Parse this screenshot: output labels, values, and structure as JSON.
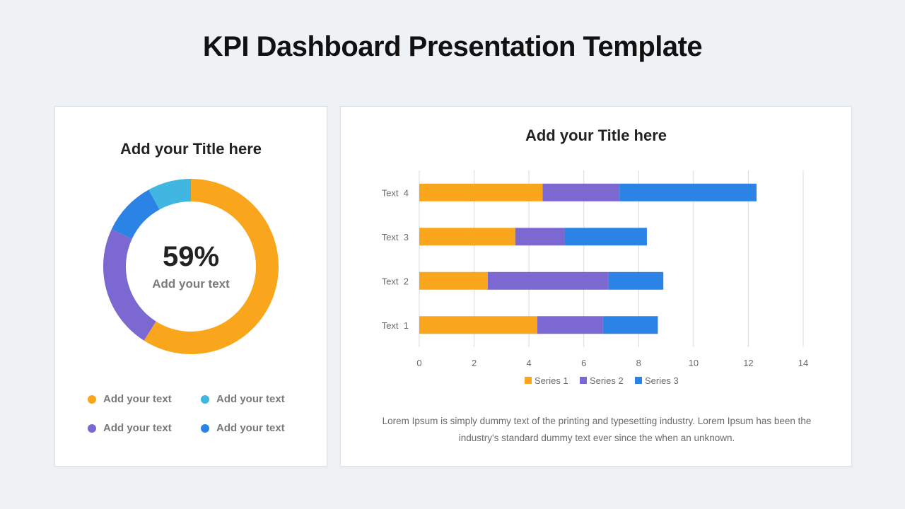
{
  "page": {
    "title": "KPI Dashboard Presentation Template"
  },
  "left_card": {
    "title": "Add your Title here",
    "center_value": "59%",
    "center_label": "Add your text",
    "legend": [
      {
        "label": "Add your text",
        "color": "#f9a61c"
      },
      {
        "label": "Add your text",
        "color": "#41b6e0"
      },
      {
        "label": "Add your text",
        "color": "#7b68d0"
      },
      {
        "label": "Add your text",
        "color": "#2b83e6"
      }
    ]
  },
  "right_card": {
    "title": "Add your Title here",
    "footnote": "Lorem Ipsum is simply dummy text of the printing and typesetting industry. Lorem Ipsum has been the industry's standard dummy text ever since the when an unknown."
  },
  "chart_data": [
    {
      "type": "pie",
      "donut": true,
      "values": [
        59,
        23,
        10,
        8
      ],
      "colors": [
        "#f9a61c",
        "#7b68d0",
        "#2b83e6",
        "#41b6e0"
      ]
    },
    {
      "type": "bar",
      "orientation": "horizontal",
      "stacked": true,
      "categories": [
        "Text  1",
        "Text  2",
        "Text  3",
        "Text  4"
      ],
      "series": [
        {
          "name": "Series 1",
          "color": "#f9a61c",
          "values": [
            4.3,
            2.5,
            3.5,
            4.5
          ]
        },
        {
          "name": "Series 2",
          "color": "#7b68d0",
          "values": [
            2.4,
            4.4,
            1.8,
            2.8
          ]
        },
        {
          "name": "Series 3",
          "color": "#2b83e6",
          "values": [
            2.0,
            2.0,
            3.0,
            5.0
          ]
        }
      ],
      "xlim": [
        0,
        14
      ],
      "xticks": [
        0,
        2,
        4,
        6,
        8,
        10,
        12,
        14
      ],
      "grid": true,
      "legend_position": "bottom"
    }
  ]
}
